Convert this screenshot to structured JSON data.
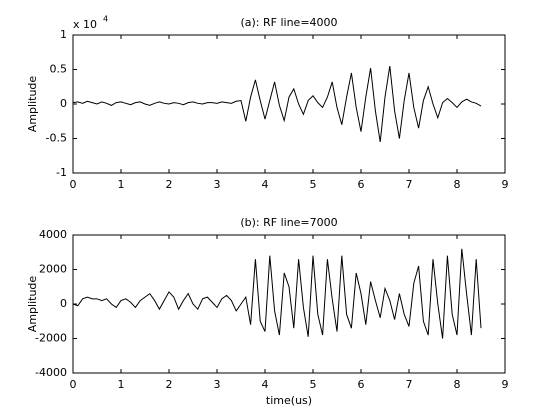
{
  "chart_data": [
    {
      "type": "line",
      "title": "(a): RF line=4000",
      "ylabel": "Amplitude",
      "axis_multiplier": "x 10",
      "axis_exponent": "4",
      "xlim": [
        0,
        9
      ],
      "xticks": [
        0,
        1,
        2,
        3,
        4,
        5,
        6,
        7,
        8,
        9
      ],
      "ylim": [
        -1,
        1
      ],
      "yticks": [
        -1,
        -0.5,
        0,
        0.5,
        1
      ],
      "series": [
        {
          "color": "#000000",
          "x": [
            0,
            0.1,
            0.2,
            0.3,
            0.4,
            0.5,
            0.6,
            0.7,
            0.8,
            0.9,
            1,
            1.1,
            1.2,
            1.3,
            1.4,
            1.5,
            1.6,
            1.7,
            1.8,
            1.9,
            2,
            2.1,
            2.2,
            2.3,
            2.4,
            2.5,
            2.6,
            2.7,
            2.8,
            2.9,
            3,
            3.1,
            3.2,
            3.3,
            3.4,
            3.5,
            3.6,
            3.7,
            3.8,
            3.9,
            4,
            4.1,
            4.2,
            4.3,
            4.4,
            4.5,
            4.6,
            4.7,
            4.8,
            4.9,
            5,
            5.1,
            5.2,
            5.3,
            5.4,
            5.5,
            5.6,
            5.7,
            5.8,
            5.9,
            6,
            6.1,
            6.2,
            6.3,
            6.4,
            6.5,
            6.6,
            6.7,
            6.8,
            6.9,
            7,
            7.1,
            7.2,
            7.3,
            7.4,
            7.5,
            7.6,
            7.7,
            7.8,
            7.9,
            8,
            8.1,
            8.2,
            8.3,
            8.4,
            8.5
          ],
          "values": [
            0.02,
            0.03,
            0.01,
            0.04,
            0.02,
            0,
            0.03,
            0.01,
            -0.02,
            0.02,
            0.03,
            0.01,
            -0.01,
            0.02,
            0.03,
            0,
            -0.02,
            0.01,
            0.03,
            0.01,
            0,
            0.02,
            0.01,
            -0.01,
            0.02,
            0.03,
            0.01,
            0,
            0.02,
            0.02,
            0.01,
            0.03,
            0.02,
            0.01,
            0.04,
            0.05,
            -0.25,
            0.1,
            0.35,
            0.05,
            -0.22,
            0.05,
            0.32,
            -0.02,
            -0.24,
            0.1,
            0.22,
            0,
            -0.15,
            0.05,
            0.12,
            0.02,
            -0.05,
            0.1,
            0.32,
            -0.05,
            -0.3,
            0.1,
            0.45,
            -0.05,
            -0.4,
            0.1,
            0.52,
            -0.1,
            -0.55,
            0.1,
            0.55,
            -0.1,
            -0.5,
            0.05,
            0.45,
            -0.05,
            -0.35,
            0.05,
            0.25,
            0,
            -0.2,
            0.02,
            0.08,
            0.02,
            -0.05,
            0.03,
            0.07,
            0.03,
            0.01,
            -0.03
          ]
        }
      ]
    },
    {
      "type": "line",
      "title": "(b): RF line=7000",
      "ylabel": "Amplitude",
      "xlabel": "time(us)",
      "xlim": [
        0,
        9
      ],
      "xticks": [
        0,
        1,
        2,
        3,
        4,
        5,
        6,
        7,
        8,
        9
      ],
      "ylim": [
        -4000,
        4000
      ],
      "yticks": [
        -4000,
        -2000,
        0,
        2000,
        4000
      ],
      "series": [
        {
          "color": "#000000",
          "x": [
            0,
            0.1,
            0.2,
            0.3,
            0.4,
            0.5,
            0.6,
            0.7,
            0.8,
            0.9,
            1,
            1.1,
            1.2,
            1.3,
            1.4,
            1.5,
            1.6,
            1.7,
            1.8,
            1.9,
            2,
            2.1,
            2.2,
            2.3,
            2.4,
            2.5,
            2.6,
            2.7,
            2.8,
            2.9,
            3,
            3.1,
            3.2,
            3.3,
            3.4,
            3.5,
            3.6,
            3.7,
            3.8,
            3.9,
            4,
            4.1,
            4.2,
            4.3,
            4.4,
            4.5,
            4.6,
            4.7,
            4.8,
            4.9,
            5,
            5.1,
            5.2,
            5.3,
            5.4,
            5.5,
            5.6,
            5.7,
            5.8,
            5.9,
            6,
            6.1,
            6.2,
            6.3,
            6.4,
            6.5,
            6.6,
            6.7,
            6.8,
            6.9,
            7,
            7.1,
            7.2,
            7.3,
            7.4,
            7.5,
            7.6,
            7.7,
            7.8,
            7.9,
            8,
            8.1,
            8.2,
            8.3,
            8.4,
            8.5
          ],
          "values": [
            0,
            -100,
            300,
            400,
            300,
            300,
            200,
            300,
            0,
            -200,
            200,
            300,
            100,
            -200,
            200,
            400,
            600,
            200,
            -300,
            200,
            700,
            400,
            -300,
            200,
            600,
            0,
            -300,
            300,
            400,
            100,
            -200,
            300,
            500,
            200,
            -400,
            0,
            400,
            -1200,
            2600,
            -1000,
            -1600,
            2800,
            -400,
            -1800,
            1800,
            1000,
            -1400,
            2600,
            -200,
            -1900,
            2800,
            -600,
            -1800,
            2600,
            300,
            -1600,
            2800,
            -600,
            -1400,
            1800,
            600,
            -1200,
            1300,
            200,
            -800,
            900,
            200,
            -900,
            600,
            -600,
            -1300,
            1200,
            2200,
            -1000,
            -1800,
            2600,
            0,
            -2000,
            2800,
            -600,
            -1800,
            3200,
            600,
            -1800,
            2600,
            -1400
          ]
        }
      ]
    }
  ]
}
